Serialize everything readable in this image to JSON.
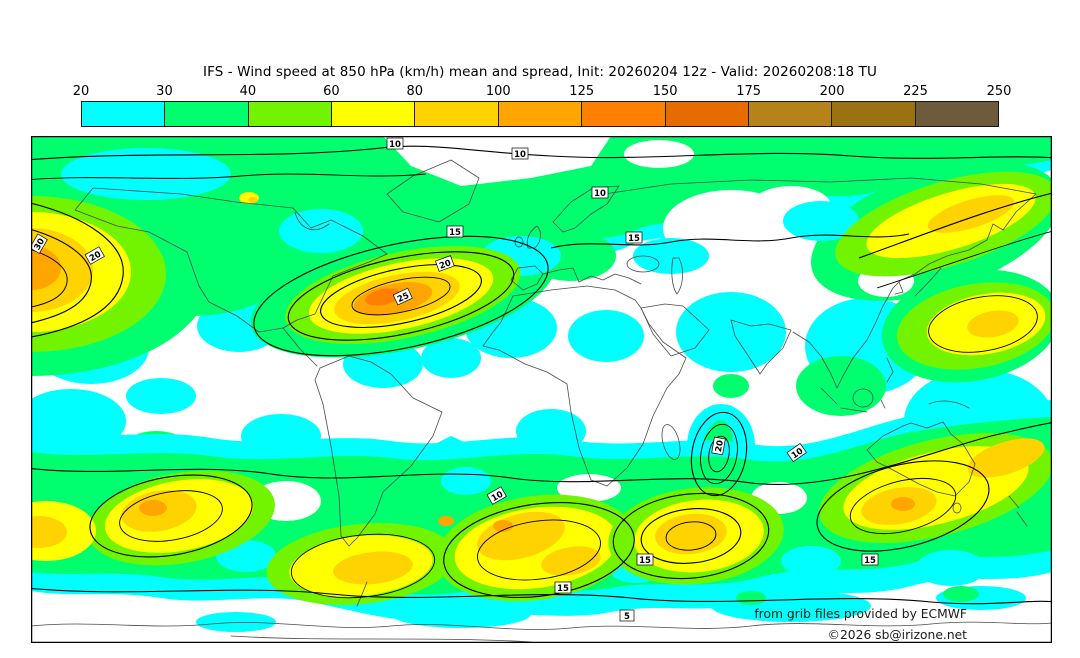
{
  "title": "IFS - Wind speed at 850 hPa (km/h) mean and spread, Init: 20260204 12z - Valid: 20260208:18 TU",
  "colorbar": {
    "ticks": [
      "20",
      "30",
      "40",
      "60",
      "80",
      "100",
      "125",
      "150",
      "175",
      "200",
      "225",
      "250"
    ],
    "colors": [
      "#00FFFF",
      "#00FF6E",
      "#72F400",
      "#FFFF00",
      "#FFD300",
      "#FFA500",
      "#FF8000",
      "#E66C00",
      "#B5831A",
      "#9A7310",
      "#6E5B3B"
    ]
  },
  "map": {
    "contour_labels": [
      "10",
      "10",
      "15",
      "20",
      "25",
      "30",
      "20",
      "10",
      "15",
      "10",
      "10",
      "15",
      "15",
      "20",
      "15",
      "5"
    ],
    "credit_line1": "from grib files provided by ECMWF",
    "credit_line2": "©2026 sb@irizone.net"
  }
}
